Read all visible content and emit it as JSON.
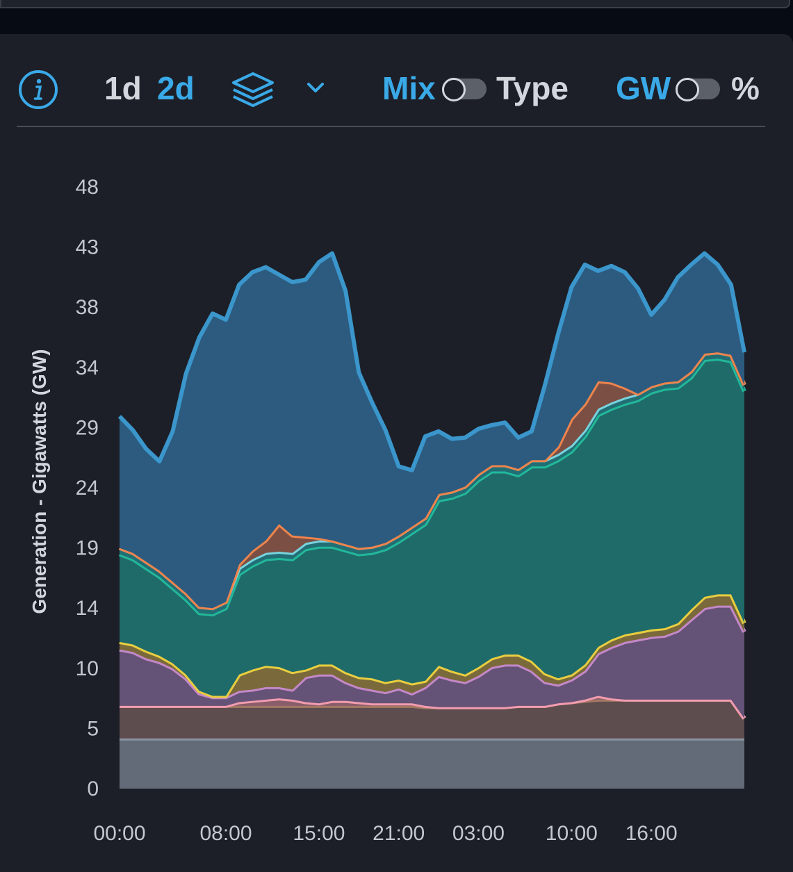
{
  "toolbar": {
    "info_icon": "info-circle-icon",
    "range_options": [
      "1d",
      "2d"
    ],
    "selected_range": "2d",
    "layers_icon": "layers-icon",
    "dropdown_icon": "chevron-down-icon",
    "mix_label": "Mix",
    "type_label": "Type",
    "gw_label": "GW",
    "percent_label": "%",
    "mix_type_toggle_on": false,
    "unit_toggle_on": false,
    "accent_color": "#3aa9e8"
  },
  "chart_data": {
    "type": "area",
    "stacked": true,
    "ylabel": "Generation - Gigawatts (GW)",
    "xlabel": "",
    "ylim": [
      0,
      48
    ],
    "yticks": [
      "0",
      "5",
      "10",
      "14",
      "19",
      "24",
      "29",
      "34",
      "38",
      "43",
      "48"
    ],
    "ytick_values": [
      0,
      4.8,
      9.6,
      14.4,
      19.2,
      24,
      28.8,
      33.6,
      38.4,
      43.2,
      48
    ],
    "xlim": [
      0,
      47
    ],
    "xticks": [
      "00:00",
      "08:00",
      "15:00",
      "21:00",
      "03:00",
      "10:00",
      "16:00"
    ],
    "xtick_hours": [
      0,
      8,
      15,
      21,
      27,
      34,
      40
    ],
    "x_hours": [
      0,
      1,
      2,
      3,
      4,
      5,
      6,
      7,
      8,
      9,
      10,
      11,
      12,
      13,
      14,
      15,
      16,
      17,
      18,
      19,
      20,
      21,
      22,
      23,
      24,
      25,
      26,
      27,
      28,
      29,
      30,
      31,
      32,
      33,
      34,
      35,
      36,
      37,
      38,
      39,
      40,
      41,
      42,
      43,
      44,
      45,
      46,
      47
    ],
    "series": [
      {
        "color": "#8a93a1",
        "fill": "#636b79",
        "values": [
          4.0,
          4.0,
          4.0,
          4.0,
          4.0,
          4.0,
          4.0,
          4.0,
          4.0,
          4.0,
          4.0,
          4.0,
          4.0,
          4.0,
          4.0,
          4.0,
          4.0,
          4.0,
          4.0,
          4.0,
          4.0,
          4.0,
          4.0,
          4.0,
          4.0,
          4.0,
          4.0,
          4.0,
          4.0,
          4.0,
          4.0,
          4.0,
          4.0,
          4.0,
          4.0,
          4.0,
          4.0,
          4.0,
          4.0,
          4.0,
          4.0,
          4.0,
          4.0,
          4.0,
          4.0,
          4.0,
          4.0,
          4.0
        ]
      },
      {
        "color": "#a57864",
        "fill": "#5e4d4e",
        "values": [
          2.6,
          2.6,
          2.6,
          2.6,
          2.6,
          2.6,
          2.6,
          2.6,
          2.6,
          2.6,
          2.6,
          2.6,
          2.6,
          2.6,
          2.6,
          2.6,
          2.6,
          2.6,
          2.6,
          2.6,
          2.6,
          2.6,
          2.6,
          2.5,
          2.5,
          2.5,
          2.5,
          2.5,
          2.5,
          2.5,
          2.6,
          2.6,
          2.6,
          2.8,
          2.9,
          3.0,
          3.1,
          3.1,
          3.1,
          3.1,
          3.1,
          3.1,
          3.1,
          3.1,
          3.1,
          3.1,
          3.1,
          1.6
        ]
      },
      {
        "color": "#f29cae",
        "fill": "#8a5d6a",
        "values": [
          0,
          0,
          0,
          0,
          0,
          0,
          0,
          0,
          0,
          0.3,
          0.4,
          0.5,
          0.6,
          0.5,
          0.3,
          0.2,
          0.4,
          0.4,
          0.3,
          0.2,
          0.2,
          0.2,
          0.2,
          0.1,
          0,
          0,
          0,
          0,
          0,
          0,
          0,
          0,
          0,
          0,
          0,
          0.1,
          0.3,
          0.1,
          0,
          0,
          0,
          0,
          0,
          0,
          0,
          0,
          0,
          0
        ]
      },
      {
        "color": "#c488c8",
        "fill": "#655277",
        "values": [
          4.5,
          4.3,
          3.8,
          3.5,
          3.0,
          2.2,
          1.0,
          0.7,
          0.7,
          0.9,
          0.9,
          1.0,
          0.9,
          0.8,
          2.0,
          2.3,
          2.1,
          1.5,
          1.2,
          1.1,
          0.9,
          1.2,
          0.8,
          1.5,
          2.5,
          2.2,
          2.0,
          2.5,
          3.2,
          3.4,
          3.3,
          2.8,
          1.9,
          1.5,
          1.8,
          2.3,
          3.4,
          4.1,
          4.6,
          4.8,
          5.0,
          5.1,
          5.5,
          6.4,
          7.3,
          7.5,
          7.5,
          6.9
        ]
      },
      {
        "color": "#e9ce3f",
        "fill": "#7a6a3b",
        "values": [
          0.6,
          0.6,
          0.6,
          0.5,
          0.4,
          0.3,
          0.2,
          0.1,
          0.1,
          1.3,
          1.6,
          1.7,
          1.6,
          1.4,
          0.6,
          0.8,
          0.8,
          0.8,
          0.8,
          0.9,
          0.8,
          0.7,
          0.8,
          0.5,
          0.8,
          0.7,
          0.6,
          0.7,
          0.7,
          0.8,
          0.8,
          0.8,
          0.7,
          0.5,
          0.4,
          0.5,
          0.5,
          0.6,
          0.6,
          0.6,
          0.6,
          0.6,
          0.6,
          0.8,
          0.9,
          0.9,
          0.9,
          0.7
        ]
      },
      {
        "color": "#22b89a",
        "fill": "#1f6b69",
        "values": [
          7.0,
          6.8,
          6.6,
          6.3,
          6.0,
          6.0,
          6.2,
          6.5,
          7.0,
          8.0,
          8.3,
          8.5,
          8.7,
          9.0,
          9.6,
          9.4,
          9.4,
          9.7,
          9.8,
          10.0,
          10.6,
          11.0,
          12.0,
          12.5,
          13.2,
          13.8,
          14.5,
          14.9,
          14.9,
          14.6,
          14.3,
          15.5,
          16.5,
          17.4,
          17.8,
          18.2,
          18.5,
          18.4,
          18.4,
          18.5,
          18.9,
          19.1,
          18.8,
          18.5,
          18.9,
          18.8,
          18.6,
          18.5
        ]
      },
      {
        "color": "#78d3de",
        "fill": "#226e75",
        "values": [
          0.5,
          0.5,
          0.5,
          0.5,
          0.5,
          0.5,
          0.5,
          0.5,
          0.5,
          0.5,
          0.5,
          0.5,
          0.5,
          0.5,
          0.5,
          0.5,
          0.5,
          0.5,
          0.5,
          0.5,
          0.5,
          0.5,
          0.5,
          0.5,
          0.5,
          0.5,
          0.5,
          0.5,
          0.5,
          0.5,
          0.5,
          0.5,
          0.5,
          0.5,
          0.5,
          0.5,
          0.5,
          0.5,
          0.5,
          0.5,
          0.5,
          0.5,
          0.5,
          0.5,
          0.5,
          0.5,
          0.5,
          0.5
        ]
      },
      {
        "color": "#ee844c",
        "fill": "#7c4f44",
        "values": [
          0,
          0,
          0,
          0,
          0,
          0,
          0,
          0,
          0,
          0.3,
          0.7,
          1.0,
          2.2,
          1.4,
          0.5,
          0.2,
          0,
          0,
          0,
          0,
          0,
          0,
          0,
          0,
          0,
          0,
          0,
          0,
          0,
          0,
          0,
          0,
          0,
          0.6,
          2.1,
          2.1,
          2.2,
          1.6,
          0.8,
          0,
          0,
          0,
          0,
          0,
          0,
          0,
          0,
          0
        ]
      },
      {
        "color": "#3b96cc",
        "fill": "#2c5b7f",
        "values": [
          10.5,
          9.8,
          9.0,
          8.7,
          12.0,
          17.5,
          21.5,
          23.5,
          22.5,
          22.3,
          22.2,
          21.8,
          19.9,
          20.2,
          20.5,
          22.0,
          22.9,
          20.2,
          14.0,
          11.5,
          9.0,
          5.5,
          4.5,
          6.5,
          5.0,
          4.2,
          3.9,
          3.6,
          3.2,
          3.4,
          2.5,
          2.3,
          6.0,
          9.0,
          10.5,
          11.1,
          8.8,
          9.3,
          9.2,
          8.4,
          5.7,
          6.6,
          8.3,
          8.5,
          8.0,
          7.0,
          5.6,
          2.6
        ]
      }
    ]
  }
}
